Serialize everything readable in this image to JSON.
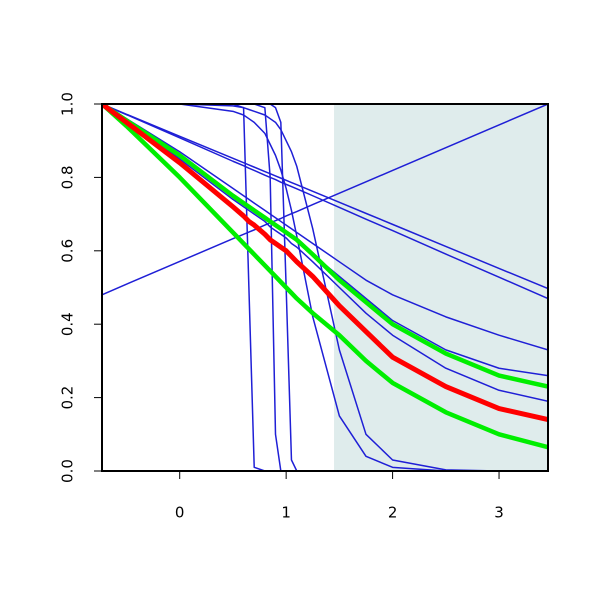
{
  "chart_data": {
    "type": "line",
    "x": [
      -0.73,
      -0.5,
      0,
      0.5,
      0.6,
      0.65,
      0.7,
      0.8,
      0.85,
      0.9,
      0.95,
      1,
      1.05,
      1.1,
      1.25,
      1.5,
      1.75,
      2,
      2.5,
      3,
      3.46
    ],
    "xlim": [
      -0.73,
      3.46
    ],
    "xticks": [
      0,
      1,
      2,
      3
    ],
    "ylim": [
      0,
      1
    ],
    "yticks": [
      {
        "value": 0,
        "label": "0.0"
      },
      {
        "value": 0.2,
        "label": "0.2"
      },
      {
        "value": 0.4,
        "label": "0.4"
      },
      {
        "value": 0.6,
        "label": "0.6"
      },
      {
        "value": 0.8,
        "label": "0.8"
      },
      {
        "value": 1,
        "label": "1.0"
      }
    ],
    "shaded_region": {
      "x": [
        1.45,
        3.46
      ],
      "color": "#dfecec"
    },
    "series": [
      {
        "color": "#1f1fd6",
        "width": 1.5,
        "values": [
          0.48,
          0.509,
          0.571,
          0.633,
          0.645,
          0.651,
          0.657,
          0.67,
          0.676,
          0.682,
          0.688,
          0.695,
          0.701,
          0.707,
          0.726,
          0.757,
          0.788,
          0.819,
          0.881,
          0.943,
          1.0
        ]
      },
      {
        "color": "#1f1fd6",
        "width": 1.5,
        "values": [
          1,
          0.972,
          0.912,
          0.852,
          0.84,
          0.834,
          0.828,
          0.816,
          0.81,
          0.804,
          0.798,
          0.792,
          0.786,
          0.78,
          0.762,
          0.732,
          0.702,
          0.672,
          0.612,
          0.552,
          0.497
        ]
      },
      {
        "color": "#1f1fd6",
        "width": 1.5,
        "values": [
          1,
          0.971,
          0.908,
          0.844,
          0.832,
          0.825,
          0.819,
          0.806,
          0.8,
          0.794,
          0.787,
          0.781,
          0.775,
          0.769,
          0.75,
          0.718,
          0.686,
          0.655,
          0.591,
          0.528,
          0.47
        ]
      },
      {
        "color": "#1f1fd6",
        "width": 1.5,
        "values": [
          1,
          1,
          1,
          1,
          0.99,
          0.5,
          0.01,
          0,
          0,
          0,
          0,
          0,
          0,
          0,
          0,
          0,
          0,
          0,
          0,
          0,
          0
        ]
      },
      {
        "color": "#1f1fd6",
        "width": 1.5,
        "values": [
          1,
          1,
          1,
          1,
          1,
          1,
          1,
          0.99,
          0.8,
          0.1,
          0,
          0,
          0,
          0,
          0,
          0,
          0,
          0,
          0,
          0,
          0
        ]
      },
      {
        "color": "#1f1fd6",
        "width": 1.5,
        "values": [
          1,
          1,
          1,
          1,
          1,
          1,
          1,
          1,
          1,
          0.99,
          0.95,
          0.5,
          0.03,
          0,
          0,
          0,
          0,
          0,
          0,
          0,
          0
        ]
      },
      {
        "color": "#1f1fd6",
        "width": 1.5,
        "values": [
          1,
          1,
          1,
          0.98,
          0.97,
          0.96,
          0.95,
          0.92,
          0.89,
          0.86,
          0.82,
          0.77,
          0.71,
          0.64,
          0.42,
          0.15,
          0.04,
          0.01,
          0,
          0,
          0
        ]
      },
      {
        "color": "#1f1fd6",
        "width": 1.5,
        "values": [
          1,
          1,
          1,
          0.995,
          0.99,
          0.985,
          0.98,
          0.97,
          0.96,
          0.95,
          0.93,
          0.9,
          0.87,
          0.83,
          0.66,
          0.33,
          0.1,
          0.03,
          0.003,
          0,
          0
        ]
      },
      {
        "color": "#1f1fd6",
        "width": 1.5,
        "values": [
          1,
          0.96,
          0.87,
          0.77,
          0.75,
          0.74,
          0.73,
          0.71,
          0.7,
          0.69,
          0.68,
          0.67,
          0.66,
          0.65,
          0.62,
          0.57,
          0.52,
          0.48,
          0.42,
          0.37,
          0.33
        ]
      },
      {
        "color": "#1f1fd6",
        "width": 1.5,
        "values": [
          1,
          0.955,
          0.85,
          0.74,
          0.72,
          0.71,
          0.7,
          0.68,
          0.665,
          0.655,
          0.645,
          0.635,
          0.62,
          0.61,
          0.57,
          0.5,
          0.43,
          0.37,
          0.28,
          0.22,
          0.19
        ]
      },
      {
        "color": "#1f1fd6",
        "width": 1.5,
        "values": [
          1,
          0.957,
          0.855,
          0.75,
          0.73,
          0.72,
          0.71,
          0.69,
          0.68,
          0.67,
          0.66,
          0.65,
          0.64,
          0.63,
          0.59,
          0.53,
          0.47,
          0.41,
          0.33,
          0.28,
          0.26
        ]
      },
      {
        "color": "#00ee00",
        "width": 4.5,
        "values": [
          1,
          0.955,
          0.86,
          0.75,
          0.73,
          0.72,
          0.71,
          0.69,
          0.68,
          0.67,
          0.66,
          0.65,
          0.64,
          0.63,
          0.59,
          0.52,
          0.46,
          0.4,
          0.32,
          0.26,
          0.23
        ]
      },
      {
        "color": "#00ee00",
        "width": 4.5,
        "values": [
          1,
          0.94,
          0.8,
          0.65,
          0.62,
          0.605,
          0.59,
          0.56,
          0.545,
          0.53,
          0.515,
          0.5,
          0.485,
          0.47,
          0.43,
          0.37,
          0.3,
          0.24,
          0.16,
          0.1,
          0.065
        ]
      },
      {
        "color": "#ff0000",
        "width": 5,
        "values": [
          1,
          0.95,
          0.84,
          0.72,
          0.695,
          0.68,
          0.67,
          0.645,
          0.63,
          0.62,
          0.61,
          0.6,
          0.585,
          0.57,
          0.53,
          0.45,
          0.38,
          0.31,
          0.23,
          0.17,
          0.14
        ]
      }
    ]
  }
}
